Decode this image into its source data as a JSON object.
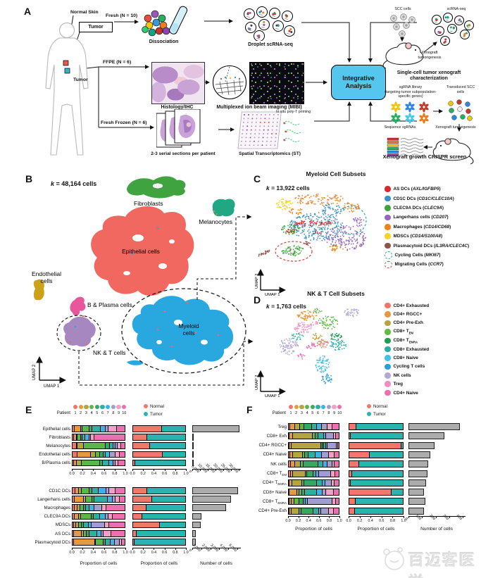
{
  "panelA": {
    "label": "A",
    "sample_labels": {
      "normal_skin": "Normal Skin",
      "tumor_top": "Tumor",
      "tumor_mid": "Tumor"
    },
    "branches": {
      "fresh": "Fresh (N = 10)",
      "ffpe": "FFPE (N = 6)",
      "fresh_frozen": "Fresh Frozen (N = 6)"
    },
    "captions": {
      "dissociation": "Dissociation",
      "droplet": "Droplet scRNA-seq",
      "histology": "Histology/IHC",
      "mibi": "Multiplexed ion beam imaging (MIBI)",
      "sections": "2-3 serial sections per patient",
      "st": "Spatial Transcriptomics (ST)",
      "in_situ": "In situ poly-T priming"
    },
    "integrative": "Integrative Analysis",
    "right_top": {
      "scc": "SCC cells",
      "scrna": "scRNA-seq",
      "xeno": "Xenograft tumorigenesis",
      "caption": "Single-cell tumor xenograft characterization"
    },
    "right_bottom": {
      "sgrna_lib1": "sgRNA library",
      "sgrna_lib2": "(targeting tumor subpopulation-specific genes)",
      "transduced": "Transduced SCC cells",
      "sequence": "Sequence sgRNAs",
      "xeno": "Xenograft tumorigenesis",
      "caption": "Xenograft growth CRISPR screen"
    }
  },
  "panelB": {
    "label": "B",
    "k": "k = 48,164 cells",
    "axes": {
      "x": "UMAP 1",
      "y": "UMAP 2"
    },
    "clusters": [
      {
        "name": "Fibroblasts",
        "color": "#3FA33F"
      },
      {
        "name": "Melanocytes",
        "color": "#1FA882"
      },
      {
        "name": "Epithelial cells",
        "color": "#F0685F"
      },
      {
        "name": "Endothelial cells",
        "line1": "Endothelial",
        "line2": "cells",
        "color": "#CDA21B"
      },
      {
        "name": "B & Plasma cells",
        "color": "#E8569B"
      },
      {
        "name": "NK & T cells",
        "color": "#A687BF"
      },
      {
        "name": "Myeloid cells",
        "line1": "Myeloid",
        "line2": "cells",
        "color": "#29A8E0"
      }
    ]
  },
  "panelC": {
    "label": "C",
    "title": "Myeloid Cell Subsets",
    "k": "k = 13,922 cells",
    "axes": {
      "x": "UMAP 1",
      "y": "UMAP 2"
    },
    "legend": [
      {
        "name": "AS DCs",
        "gene": "AXL/IGFBP5",
        "color": "#D92B2B",
        "dashed": false
      },
      {
        "name": "CD1C DCs",
        "gene": "CD1C/CLEC10A",
        "color": "#3E8FC4",
        "dashed": false
      },
      {
        "name": "CLEC9A DCs",
        "gene": "CLEC9A",
        "color": "#3CA63C",
        "dashed": false
      },
      {
        "name": "Langerhans cells",
        "gene": "CD207",
        "color": "#9467BD",
        "dashed": false
      },
      {
        "name": "Macrophages",
        "gene": "CD14/CD68",
        "color": "#F08018",
        "dashed": false
      },
      {
        "name": "MDSCs",
        "gene": "CD14/S100A8",
        "color": "#F5D327",
        "dashed": false
      },
      {
        "name": "Plasmacytoid DCs",
        "gene": "IL3RA/CLEC4C",
        "color": "#8C564B",
        "dashed": false
      },
      {
        "name": "Cycling Cells",
        "gene": "MKI67",
        "color": "#2AA9B8",
        "dashed": true
      },
      {
        "name": "Migrating Cells",
        "gene": "CCR7",
        "color": "#E0382E",
        "dashed": true
      }
    ]
  },
  "panelD": {
    "label": "D",
    "title": "NK & T Cell Subsets",
    "k": "k = 1,763 cells",
    "axes": {
      "x": "UMAP 1",
      "y": "UMAP 2"
    },
    "legend": [
      {
        "name": "CD4+ Exhausted",
        "sub": "",
        "color": "#F2756B"
      },
      {
        "name": "CD4+ RGCC+",
        "sub": "",
        "color": "#E49A3F"
      },
      {
        "name": "CD4+ Pre-Exh",
        "sub": "",
        "color": "#B5A540"
      },
      {
        "name": "CD8+ T",
        "sub": "EM",
        "color": "#62BA46"
      },
      {
        "name": "CD8+ T",
        "sub": "EMRA",
        "color": "#1E9E4E"
      },
      {
        "name": "CD8+ Exhausted",
        "sub": "",
        "color": "#2FAFA3"
      },
      {
        "name": "CD8+ Naive",
        "sub": "",
        "color": "#45C0E8"
      },
      {
        "name": "Cycling T cells",
        "sub": "",
        "color": "#2D9FD8"
      },
      {
        "name": "NK cells",
        "sub": "",
        "color": "#B3A8D2"
      },
      {
        "name": "Treg",
        "sub": "",
        "color": "#F090BE"
      },
      {
        "name": "CD4+ Naive",
        "sub": "",
        "color": "#EC6FB2"
      }
    ]
  },
  "panelE": {
    "label": "E"
  },
  "panelF": {
    "label": "F"
  },
  "patients": {
    "label": "Patient",
    "ids": [
      "1",
      "2",
      "3",
      "4",
      "5",
      "6",
      "7",
      "8",
      "9",
      "10"
    ],
    "colors": [
      "#F2756B",
      "#E49A3F",
      "#B5A540",
      "#5CB649",
      "#37A862",
      "#2FAFA3",
      "#3FB1E3",
      "#A29DD1",
      "#F2A0C7",
      "#EC6FB2"
    ]
  },
  "condition_legend": [
    {
      "label": "Normal",
      "color": "#F1766C"
    },
    {
      "label": "Tumor",
      "color": "#29B4B0"
    }
  ],
  "chart_data": [
    {
      "id": "E-top",
      "type": "bar",
      "xlabel_prop": "Proportion of cells",
      "xlabel_count": "Number of cells",
      "prop_ticks": [
        "0.0",
        "0.2",
        "0.4",
        "0.6",
        "0.8",
        "1.0"
      ],
      "count_ticks": [
        "0",
        "5,000",
        "10,000",
        "15,000",
        "20,000",
        "25,000",
        "30,000"
      ],
      "count_tick_values": [
        0,
        5000,
        10000,
        15000,
        20000,
        25000,
        30000
      ],
      "count_max": 31000,
      "rows": [
        {
          "label": "Epithelial cells",
          "sub": "",
          "patients": [
            0.04,
            0.12,
            0.03,
            0.14,
            0.05,
            0.16,
            0.1,
            0.05,
            0.16,
            0.15
          ],
          "normal": 0.56,
          "tumor": 0.44,
          "count": 30500
        },
        {
          "label": "Fibroblasts",
          "sub": "",
          "patients": [
            0.03,
            0.05,
            0.02,
            0.06,
            0.03,
            0.05,
            0.08,
            0.03,
            0.07,
            0.58
          ],
          "normal": 0.27,
          "tumor": 0.73,
          "count": 700
        },
        {
          "label": "Melanocytes",
          "sub": "",
          "patients": [
            0.08,
            0.02,
            0.12,
            0.42,
            0.08,
            0.06,
            0.04,
            0.04,
            0.07,
            0.07
          ],
          "normal": 0.33,
          "tumor": 0.67,
          "count": 650
        },
        {
          "label": "Endothelial cells",
          "sub": "",
          "patients": [
            0.1,
            0.25,
            0.1,
            0.08,
            0.06,
            0.05,
            0.08,
            0.1,
            0.08,
            0.1
          ],
          "normal": 0.57,
          "tumor": 0.43,
          "count": 380
        },
        {
          "label": "B/Plasma cells",
          "sub": "",
          "patients": [
            0.03,
            0.05,
            0.1,
            0.35,
            0.05,
            0.12,
            0.08,
            0.05,
            0.05,
            0.12
          ],
          "normal": 0.04,
          "tumor": 0.96,
          "count": 320
        }
      ]
    },
    {
      "id": "E-bottom",
      "type": "bar",
      "xlabel_prop": "Proportion of cells",
      "xlabel_count": "Number of cells",
      "prop_ticks": [
        "0.0",
        "0.2",
        "0.4",
        "0.6",
        "0.8",
        "1.0"
      ],
      "count_ticks": [
        "0",
        "1,000",
        "2,000",
        "3,000",
        "4,000",
        "5,000"
      ],
      "count_tick_values": [
        0,
        1000,
        2000,
        3000,
        4000,
        5000
      ],
      "count_max": 5300,
      "rows": [
        {
          "label": "CD1C DCs",
          "sub": "",
          "patients": [
            0.05,
            0.07,
            0.05,
            0.15,
            0.06,
            0.12,
            0.15,
            0.05,
            0.12,
            0.18
          ],
          "normal": 0.27,
          "tumor": 0.73,
          "count": 5100
        },
        {
          "label": "Langerhans cells",
          "sub": "",
          "patients": [
            0.04,
            0.18,
            0.04,
            0.12,
            0.04,
            0.25,
            0.1,
            0.05,
            0.08,
            0.1
          ],
          "normal": 0.37,
          "tumor": 0.63,
          "count": 4300
        },
        {
          "label": "Macrophages",
          "sub": "",
          "patients": [
            0.04,
            0.06,
            0.05,
            0.06,
            0.05,
            0.06,
            0.1,
            0.15,
            0.08,
            0.35
          ],
          "normal": 0.25,
          "tumor": 0.75,
          "count": 3700
        },
        {
          "label": "CLEC9A DCs",
          "sub": "",
          "patients": [
            0.04,
            0.08,
            0.04,
            0.2,
            0.05,
            0.12,
            0.1,
            0.06,
            0.08,
            0.23
          ],
          "normal": 0.17,
          "tumor": 0.83,
          "count": 1000
        },
        {
          "label": "MDSCs",
          "sub": "",
          "patients": [
            0.03,
            0.04,
            0.05,
            0.05,
            0.04,
            0.1,
            0.06,
            0.25,
            0.08,
            0.3
          ],
          "normal": 0.52,
          "tumor": 0.48,
          "count": 900
        },
        {
          "label": "AS DCs",
          "sub": "",
          "patients": [
            0.03,
            0.15,
            0.03,
            0.06,
            0.05,
            0.15,
            0.08,
            0.05,
            0.15,
            0.25
          ],
          "normal": 0.07,
          "tumor": 0.93,
          "count": 420
        },
        {
          "label": "Plasmacytoid DCs",
          "sub": "",
          "patients": [
            0.03,
            0.4,
            0.02,
            0.15,
            0.03,
            0.1,
            0.08,
            0.1,
            0.04,
            0.05
          ],
          "normal": 0.03,
          "tumor": 0.97,
          "count": 360
        }
      ]
    },
    {
      "id": "F",
      "type": "bar",
      "xlabel_prop": "Proportion of cells",
      "xlabel_count": "Number of cells",
      "prop_ticks": [
        "0.0",
        "0.2",
        "0.4",
        "0.6",
        "0.8",
        "1.0"
      ],
      "count_ticks": [
        "0",
        "100",
        "200",
        "300",
        "400"
      ],
      "count_tick_values": [
        0,
        100,
        200,
        300,
        400
      ],
      "count_max": 415,
      "rows": [
        {
          "label": "Treg",
          "sub": "",
          "patients": [
            0.03,
            0.1,
            0.1,
            0.08,
            0.15,
            0.1,
            0.1,
            0.12,
            0.1,
            0.12
          ],
          "normal": 0.13,
          "tumor": 0.87,
          "count": 380
        },
        {
          "label": "CD8+ Exh",
          "sub": "",
          "patients": [
            0.02,
            0.06,
            0.4,
            0.05,
            0.06,
            0.12,
            0.04,
            0.15,
            0.04,
            0.06
          ],
          "normal": 0.03,
          "tumor": 0.97,
          "count": 265
        },
        {
          "label": "CD4+ RGCC+",
          "sub": "",
          "patients": [
            0.02,
            0.03,
            0.6,
            0.03,
            0.03,
            0.04,
            0.03,
            0.18,
            0.02,
            0.02
          ],
          "normal": 0.97,
          "tumor": 0.03,
          "count": 190
        },
        {
          "label": "CD4+ Naive",
          "sub": "",
          "patients": [
            0.03,
            0.05,
            0.2,
            0.05,
            0.06,
            0.15,
            0.12,
            0.15,
            0.11,
            0.08
          ],
          "normal": 0.38,
          "tumor": 0.62,
          "count": 160
        },
        {
          "label": "NK cells",
          "sub": "",
          "patients": [
            0.04,
            0.08,
            0.12,
            0.05,
            0.3,
            0.1,
            0.08,
            0.1,
            0.05,
            0.08
          ],
          "normal": 0.18,
          "tumor": 0.82,
          "count": 145
        },
        {
          "label": "CD8+ T",
          "sub": "EM",
          "patients": [
            0.04,
            0.05,
            0.25,
            0.03,
            0.12,
            0.06,
            0.05,
            0.25,
            0.08,
            0.07
          ],
          "normal": 0.05,
          "tumor": 0.95,
          "count": 140
        },
        {
          "label": "CD4+ T",
          "sub": "EMRA",
          "patients": [
            0.02,
            0.05,
            0.2,
            0.04,
            0.25,
            0.12,
            0.06,
            0.12,
            0.06,
            0.08
          ],
          "normal": 0.02,
          "tumor": 0.98,
          "count": 130
        },
        {
          "label": "CD8+ Naive",
          "sub": "",
          "patients": [
            0.02,
            0.15,
            0.04,
            0.06,
            0.05,
            0.25,
            0.1,
            0.08,
            0.15,
            0.1
          ],
          "normal": 0.79,
          "tumor": 0.21,
          "count": 112
        },
        {
          "label": "CD8+ T",
          "sub": "EMRA",
          "patients": [
            0.02,
            0.04,
            0.05,
            0.1,
            0.08,
            0.05,
            0.04,
            0.5,
            0.06,
            0.06
          ],
          "normal": 0.12,
          "tumor": 0.88,
          "count": 122
        },
        {
          "label": "CD4+ Pre-Exh",
          "sub": "",
          "patients": [
            0.02,
            0.04,
            0.15,
            0.04,
            0.25,
            0.1,
            0.05,
            0.15,
            0.1,
            0.1
          ],
          "normal": 0.11,
          "tumor": 0.89,
          "count": 112
        }
      ]
    }
  ],
  "watermark": "百迈客医学"
}
